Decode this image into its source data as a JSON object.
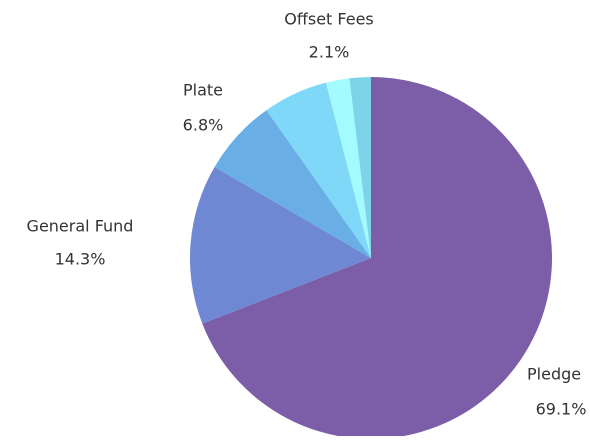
{
  "chart_data": {
    "type": "pie",
    "categories": [
      "Pledge",
      "General Fund",
      "Plate",
      null,
      "Offset Fees",
      null
    ],
    "values": [
      69.1,
      14.3,
      6.8,
      5.8,
      2.1,
      1.9
    ],
    "value_labels": [
      "69.1%",
      "14.3%",
      "6.8%",
      null,
      "2.1%",
      null
    ],
    "colors": [
      "#7b5ea7",
      "#6f88d4",
      "#6aaee6",
      "#7fd8f7",
      "#a3fbff",
      "#7dd3e8"
    ]
  }
}
